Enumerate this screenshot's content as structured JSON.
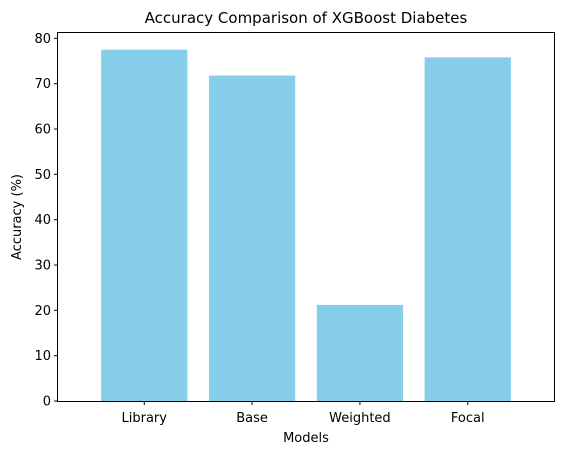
{
  "chart_data": {
    "type": "bar",
    "title": "Accuracy Comparison of XGBoost Diabetes",
    "xlabel": "Models",
    "ylabel": "Accuracy (%)",
    "categories": [
      "Library",
      "Base",
      "Weighted",
      "Focal"
    ],
    "values": [
      77.5,
      71.8,
      21.2,
      75.8
    ],
    "ylim": [
      0,
      81.4
    ],
    "yticks": [
      0,
      10,
      20,
      30,
      40,
      50,
      60,
      70,
      80
    ],
    "bar_color": "#87CEEB",
    "grid": false,
    "legend": "none"
  }
}
